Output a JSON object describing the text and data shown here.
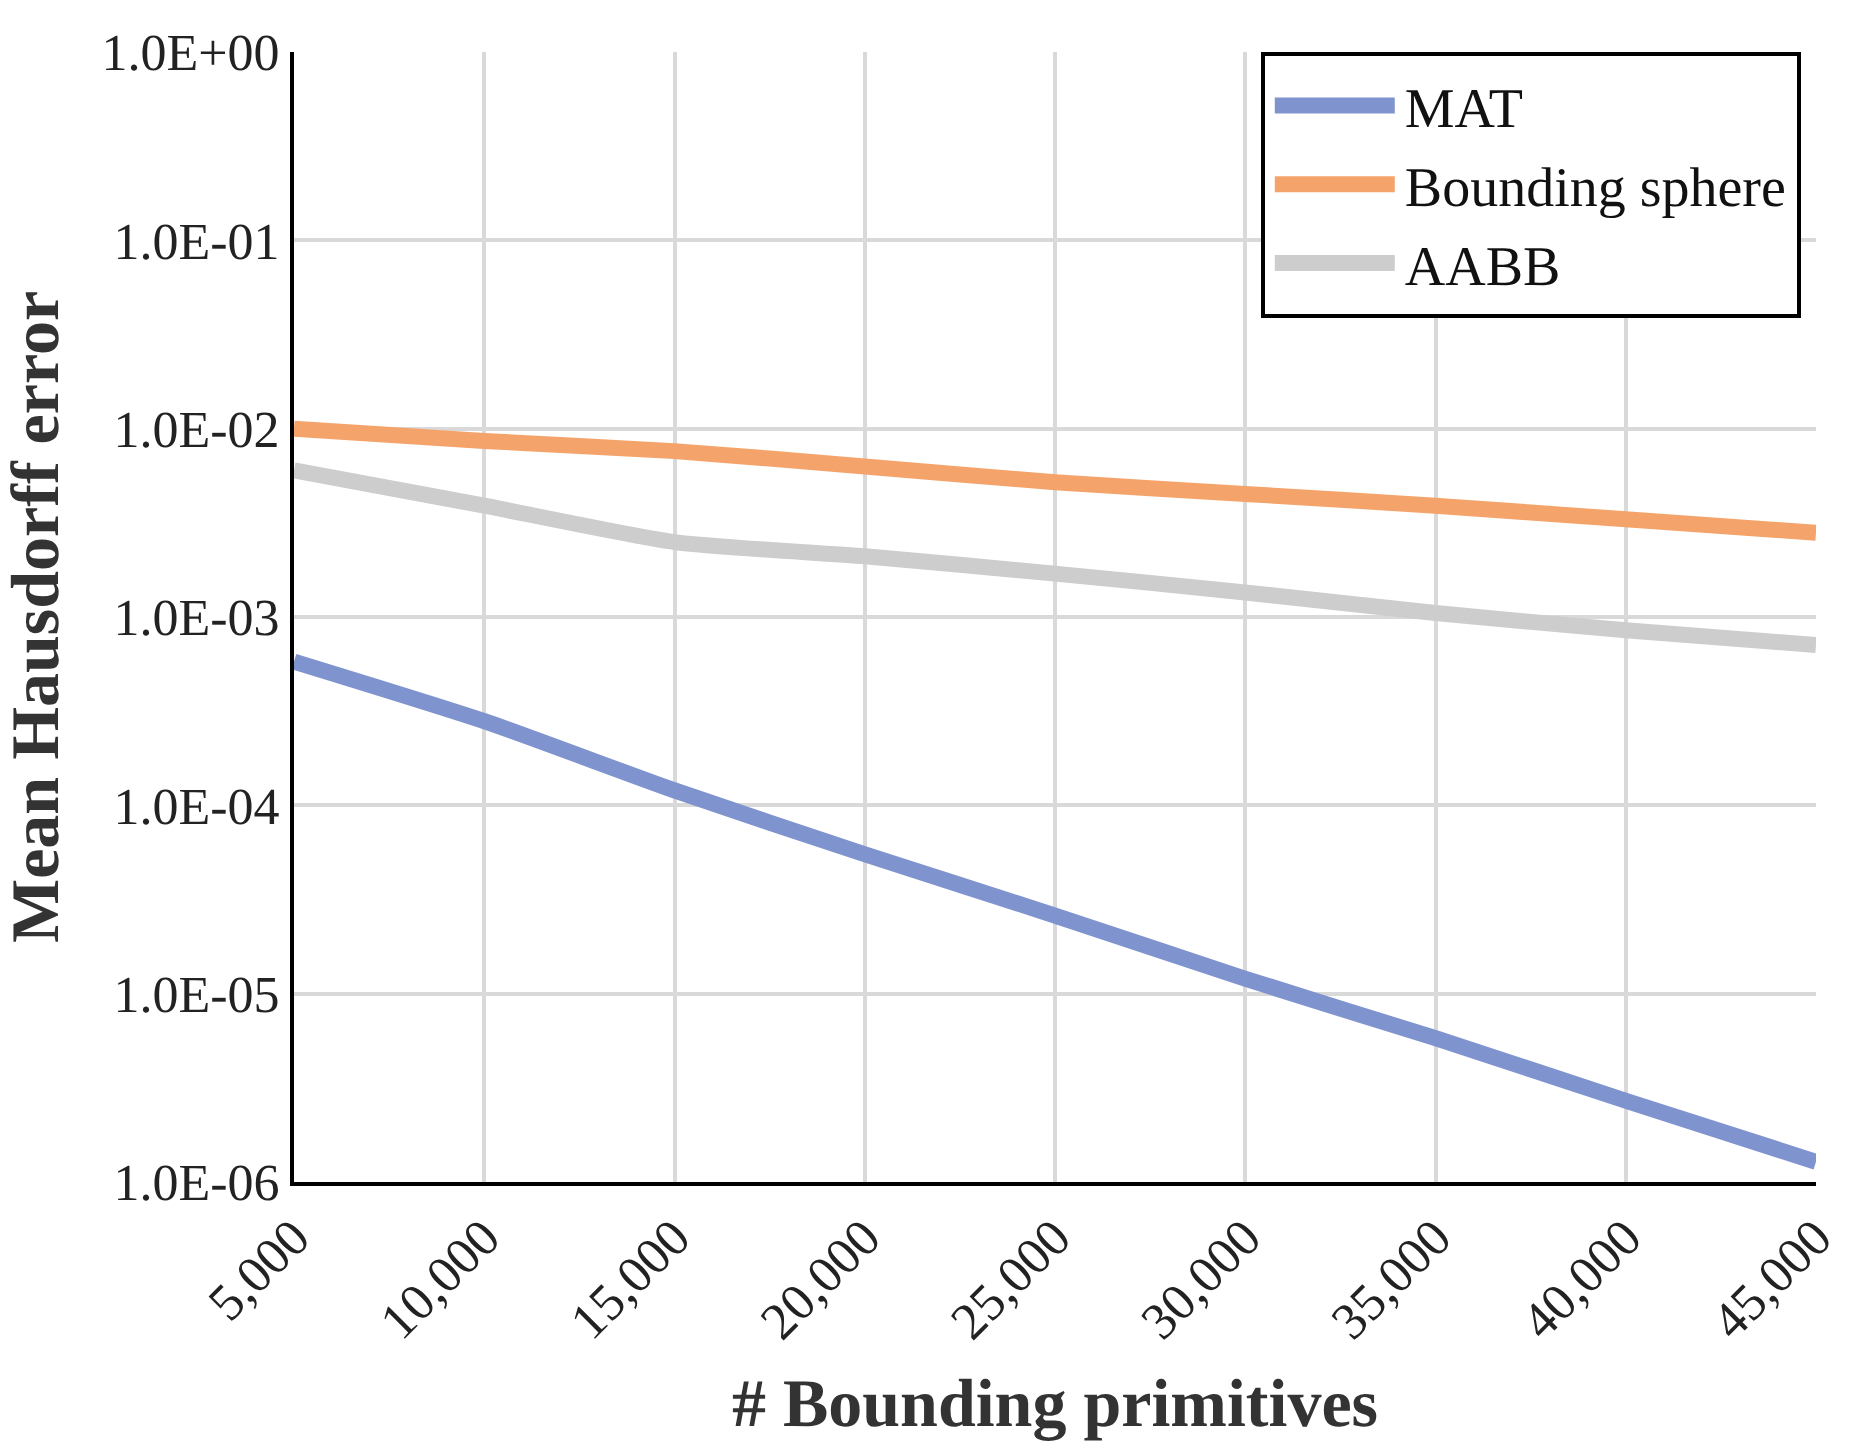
{
  "chart_data": {
    "type": "line",
    "xlabel": "# Bounding primitives",
    "ylabel": "Mean Hausdorff error",
    "log": "y",
    "grid": true,
    "legend": "top right",
    "marker": "none",
    "line_style": "solid",
    "x": [
      5000,
      10000,
      15000,
      20000,
      25000,
      30000,
      35000,
      40000,
      45000
    ],
    "xlim": [
      5000,
      45000
    ],
    "xticks": [
      {
        "value": 5000,
        "label": "5,000"
      },
      {
        "value": 10000,
        "label": "10,000"
      },
      {
        "value": 15000,
        "label": "15,000"
      },
      {
        "value": 20000,
        "label": "20,000"
      },
      {
        "value": 25000,
        "label": "25,000"
      },
      {
        "value": 30000,
        "label": "30,000"
      },
      {
        "value": 35000,
        "label": "35,000"
      },
      {
        "value": 40000,
        "label": "40,000"
      },
      {
        "value": 45000,
        "label": "45,000"
      }
    ],
    "ylim": [
      1e-06,
      1
    ],
    "yticks": [
      {
        "value": 1e-06,
        "label": "1.0E-06"
      },
      {
        "value": 1e-05,
        "label": "1.0E-05"
      },
      {
        "value": 0.0001,
        "label": "1.0E-04"
      },
      {
        "value": 0.001,
        "label": "1.0E-03"
      },
      {
        "value": 0.01,
        "label": "1.0E-02"
      },
      {
        "value": 0.1,
        "label": "1.0E-01"
      },
      {
        "value": 1,
        "label": "1.0E+00"
      }
    ],
    "series": [
      {
        "name": "MAT",
        "color": "#7f93cf",
        "values": [
          0.00058,
          0.00028,
          0.00012,
          5.5e-05,
          2.6e-05,
          1.2e-05,
          5.8e-06,
          2.7e-06,
          1.28e-06
        ]
      },
      {
        "name": "Bounding sphere",
        "color": "#f4a46a",
        "values": [
          0.01,
          0.0086,
          0.0076,
          0.0063,
          0.0052,
          0.0045,
          0.0039,
          0.0033,
          0.0028
        ]
      },
      {
        "name": "AABB",
        "color": "#cdcdcd",
        "values": [
          0.006,
          0.0039,
          0.0025,
          0.0021,
          0.0017,
          0.00135,
          0.00105,
          0.00085,
          0.00071
        ]
      }
    ]
  }
}
